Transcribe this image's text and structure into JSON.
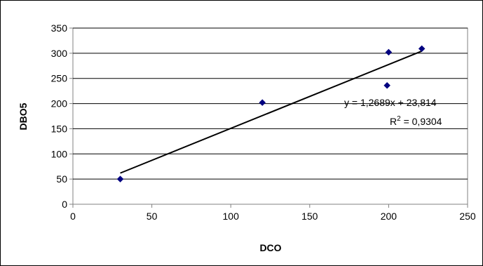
{
  "chart_data": {
    "type": "scatter",
    "xlabel": "DCO",
    "ylabel": "DBO5",
    "xlim": [
      0,
      250
    ],
    "ylim": [
      0,
      350
    ],
    "x_ticks": [
      "0",
      "50",
      "100",
      "150",
      "200",
      "250"
    ],
    "y_ticks": [
      "0",
      "50",
      "100",
      "150",
      "200",
      "250",
      "300",
      "350"
    ],
    "grid": "horizontal",
    "legend": "none",
    "series": [
      {
        "marker": "diamond",
        "color": "#000080",
        "points": [
          {
            "x": 30,
            "y": 50
          },
          {
            "x": 120,
            "y": 202
          },
          {
            "x": 199,
            "y": 236
          },
          {
            "x": 200,
            "y": 302
          },
          {
            "x": 221,
            "y": 309
          }
        ]
      }
    ],
    "trendline": {
      "type": "linear",
      "slope": 1.2689,
      "intercept": 23.814,
      "x_range": [
        30,
        221
      ],
      "color": "#000000",
      "equation_label": "y = 1,2689x + 23,814",
      "r2_prefix": "R",
      "r2_exp": "2",
      "r2_suffix": " = 0,9304"
    }
  }
}
